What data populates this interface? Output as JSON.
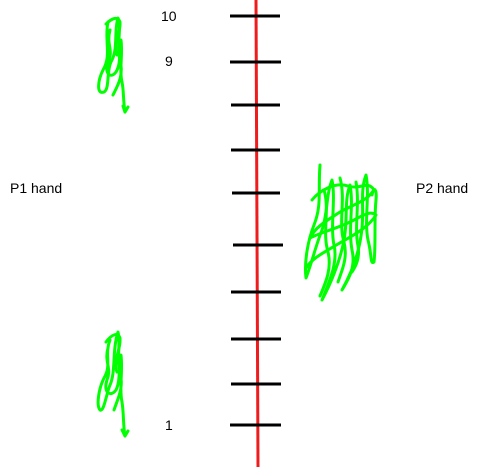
{
  "labels": {
    "p1_hand": "P1 hand",
    "p2_hand": "P2 hand",
    "top_number": "10",
    "second_number": "9",
    "bottom_number": "1"
  },
  "colors": {
    "background": "#ffffff",
    "track_line": "#ee1c1c",
    "tick": "#000000",
    "scribble": "#00ff00"
  },
  "track": {
    "tick_count": 10
  },
  "icons": {
    "scribble_top_left": "green-scribble-with-arrow",
    "scribble_bottom_left": "green-scribble-with-arrow",
    "scribble_right": "green-scribble-cluster"
  }
}
